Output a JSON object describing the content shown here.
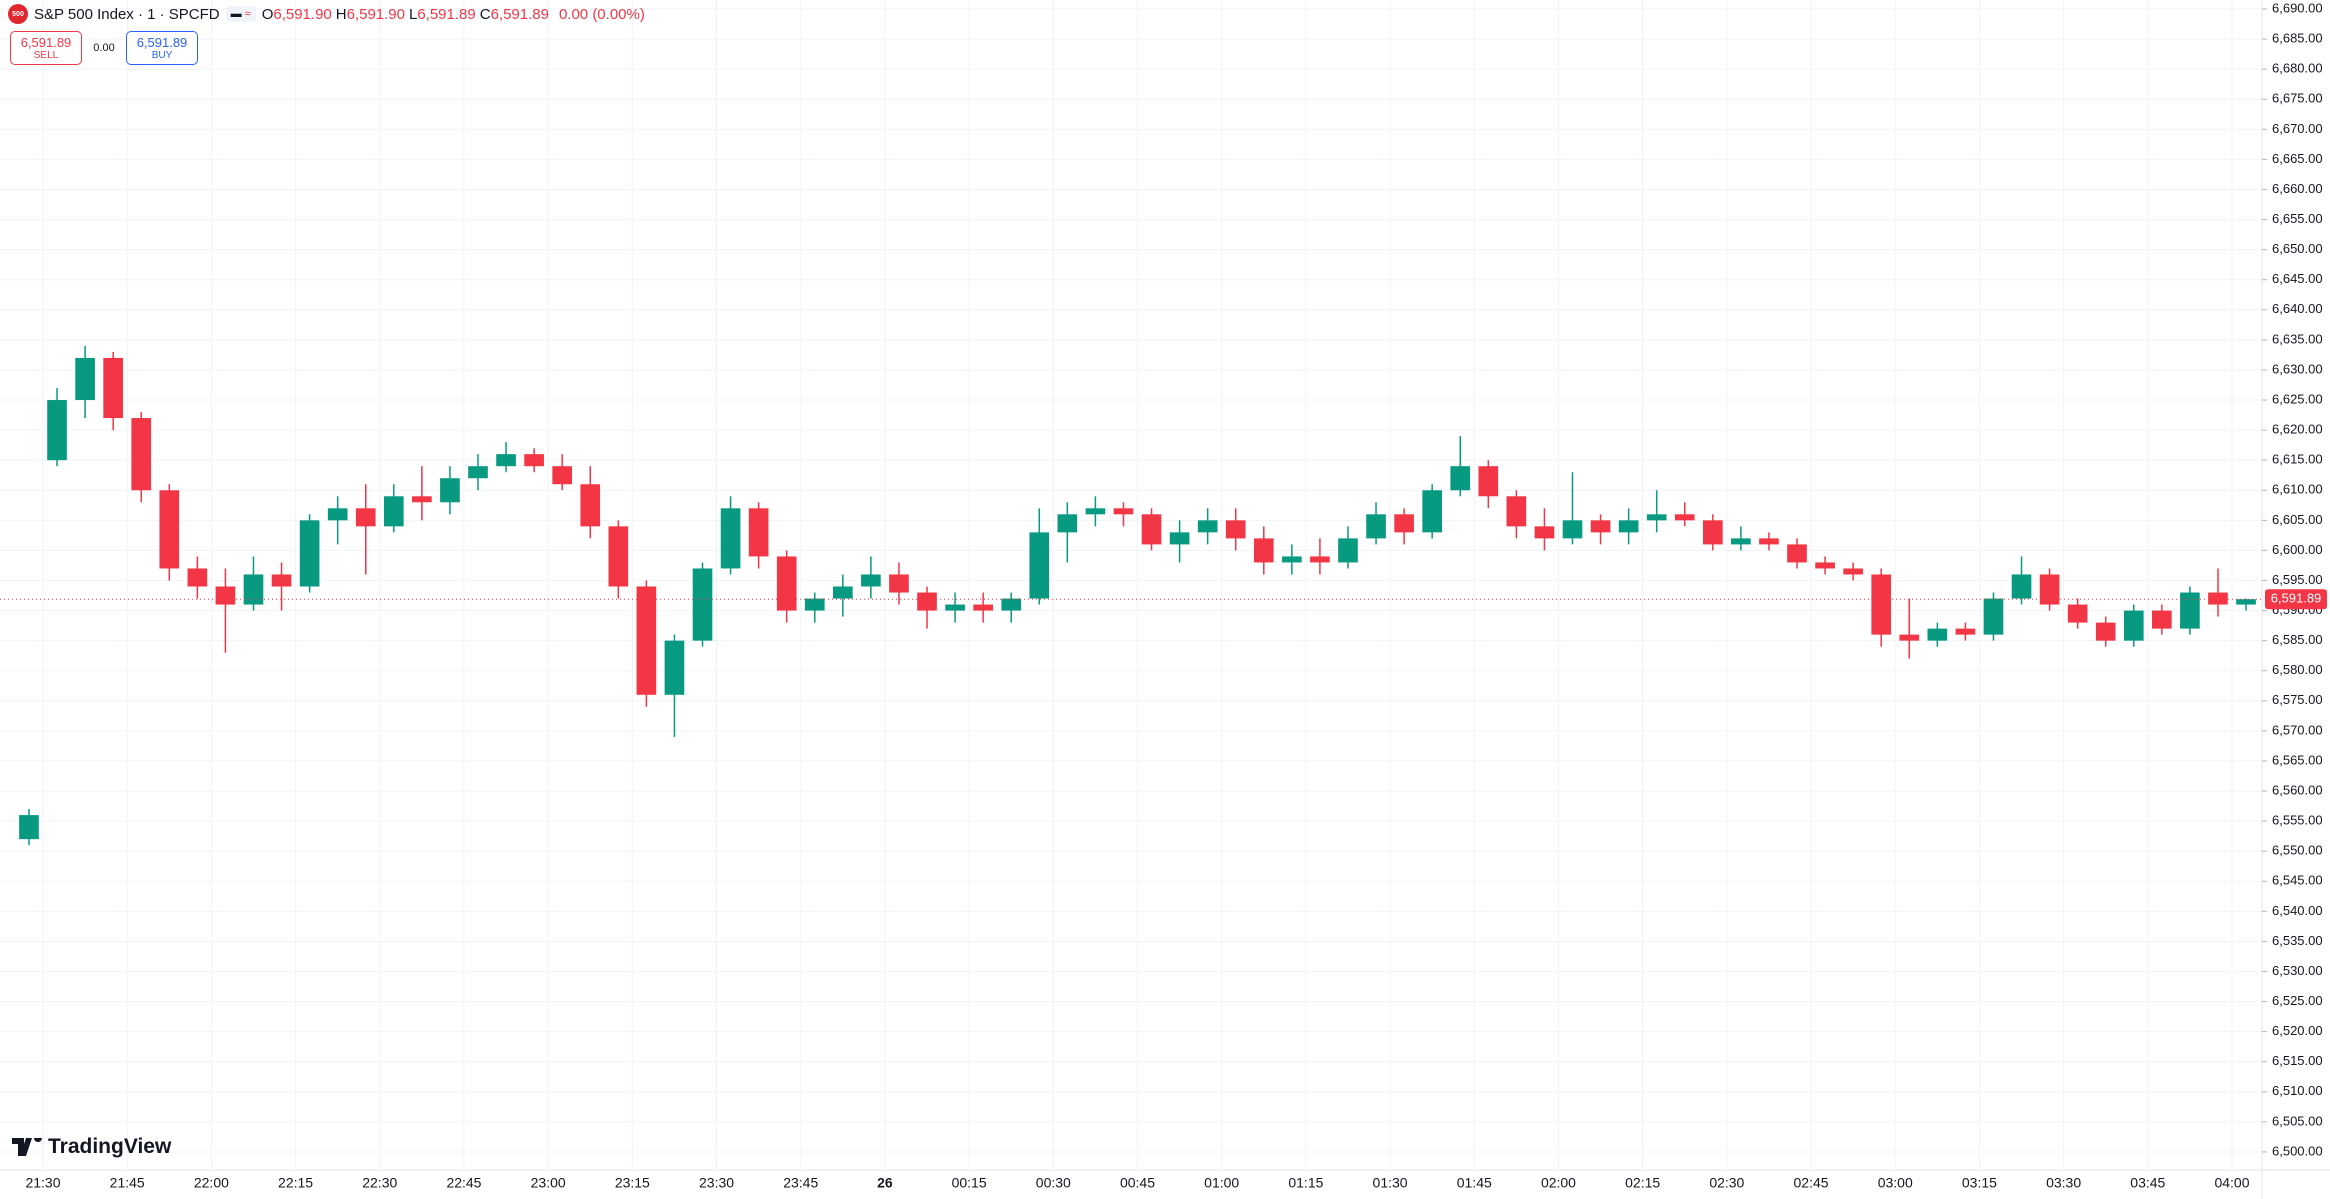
{
  "chart_data": {
    "type": "candlestick",
    "title": "S&P 500 Index · 1 · SPCFD",
    "badge": "500",
    "ohlc": [
      {
        "label": "O",
        "value": "6,591.90"
      },
      {
        "label": "H",
        "value": "6,591.90"
      },
      {
        "label": "L",
        "value": "6,591.89"
      },
      {
        "label": "C",
        "value": "6,591.89"
      }
    ],
    "change": "0.00 (0.00%)",
    "trade": {
      "sell_price": "6,591.89",
      "sell_label": "SELL",
      "spread": "0.00",
      "buy_price": "6,591.89",
      "buy_label": "BUY"
    },
    "brand": "TradingView",
    "up_color": "#089981",
    "down_color": "#f23645",
    "grid": true,
    "last_price": {
      "value": 6591.89,
      "label": "6,591.89"
    },
    "x": [
      "21:25",
      "21:30",
      "21:35",
      "21:40",
      "21:45",
      "21:50",
      "21:55",
      "22:00",
      "22:05",
      "22:10",
      "22:15",
      "22:20",
      "22:25",
      "22:30",
      "22:35",
      "22:40",
      "22:45",
      "22:50",
      "22:55",
      "23:00",
      "23:05",
      "23:10",
      "23:15",
      "23:20",
      "23:25",
      "23:30",
      "23:35",
      "23:40",
      "23:45",
      "23:50",
      "23:55",
      "00:00",
      "00:05",
      "00:10",
      "00:15",
      "00:20",
      "00:25",
      "00:30",
      "00:35",
      "00:40",
      "00:45",
      "00:50",
      "00:55",
      "01:00",
      "01:05",
      "01:10",
      "01:15",
      "01:20",
      "01:25",
      "01:30",
      "01:35",
      "01:40",
      "01:45",
      "01:50",
      "01:55",
      "02:00",
      "02:05",
      "02:10",
      "02:15",
      "02:20",
      "02:25",
      "02:30",
      "02:35",
      "02:40",
      "02:45",
      "02:50",
      "02:55",
      "03:00",
      "03:05",
      "03:10",
      "03:15",
      "03:20",
      "03:25",
      "03:30",
      "03:35",
      "03:40",
      "03:45",
      "03:50",
      "03:55",
      "04:00"
    ],
    "open": [
      6552,
      6615,
      6625,
      6632,
      6622,
      6610,
      6597,
      6594,
      6591,
      6596,
      6594,
      6605,
      6607,
      6604,
      6609,
      6608,
      6612,
      6614,
      6616,
      6614,
      6611,
      6604,
      6594,
      6576,
      6585,
      6597,
      6607,
      6599,
      6590,
      6592,
      6594,
      6596,
      6593,
      6590,
      6591,
      6590,
      6592,
      6603,
      6606,
      6607,
      6606,
      6601,
      6603,
      6605,
      6602,
      6598,
      6599,
      6598,
      6602,
      6606,
      6603,
      6610,
      6614,
      6609,
      6604,
      6602,
      6605,
      6603,
      6605,
      6606,
      6605,
      6601,
      6602,
      6601,
      6598,
      6597,
      6596,
      6586,
      6585,
      6587,
      6586,
      6592,
      6596,
      6591,
      6588,
      6585,
      6590,
      6587,
      6593,
      6591
    ],
    "high": [
      6557,
      6627,
      6634,
      6633,
      6623,
      6611,
      6599,
      6597,
      6599,
      6598,
      6606,
      6609,
      6611,
      6611,
      6614,
      6614,
      6616,
      6618,
      6617,
      6616,
      6614,
      6605,
      6595,
      6586,
      6598,
      6609,
      6608,
      6600,
      6593,
      6596,
      6599,
      6598,
      6594,
      6593,
      6593,
      6593,
      6607,
      6608,
      6609,
      6608,
      6607,
      6605,
      6607,
      6607,
      6604,
      6601,
      6602,
      6604,
      6608,
      6607,
      6611,
      6619,
      6615,
      6610,
      6607,
      6613,
      6606,
      6607,
      6610,
      6608,
      6606,
      6604,
      6603,
      6602,
      6599,
      6598,
      6597,
      6592,
      6588,
      6588,
      6593,
      6599,
      6597,
      6592,
      6589,
      6591,
      6591,
      6594,
      6597,
      6592
    ],
    "low": [
      6551,
      6614,
      6622,
      6620,
      6608,
      6595,
      6592,
      6583,
      6590,
      6590,
      6593,
      6601,
      6596,
      6603,
      6605,
      6606,
      6610,
      6613,
      6613,
      6610,
      6602,
      6592,
      6574,
      6569,
      6584,
      6596,
      6597,
      6588,
      6588,
      6589,
      6592,
      6591,
      6587,
      6588,
      6588,
      6588,
      6591,
      6598,
      6604,
      6604,
      6600,
      6598,
      6601,
      6600,
      6596,
      6596,
      6596,
      6597,
      6601,
      6601,
      6602,
      6609,
      6607,
      6602,
      6600,
      6601,
      6601,
      6601,
      6603,
      6604,
      6600,
      6600,
      6600,
      6597,
      6596,
      6595,
      6584,
      6582,
      6584,
      6585,
      6585,
      6591,
      6590,
      6587,
      6584,
      6584,
      6586,
      6586,
      6589,
      6590
    ],
    "close": [
      6556,
      6625,
      6632,
      6622,
      6610,
      6597,
      6594,
      6591,
      6596,
      6594,
      6605,
      6607,
      6604,
      6609,
      6608,
      6612,
      6614,
      6616,
      6614,
      6611,
      6604,
      6594,
      6576,
      6585,
      6597,
      6607,
      6599,
      6590,
      6592,
      6594,
      6596,
      6593,
      6590,
      6591,
      6590,
      6592,
      6603,
      6606,
      6607,
      6606,
      6601,
      6603,
      6605,
      6602,
      6598,
      6599,
      6598,
      6602,
      6606,
      6603,
      6610,
      6614,
      6609,
      6604,
      6602,
      6605,
      6603,
      6605,
      6606,
      6605,
      6601,
      6602,
      6601,
      6598,
      6597,
      6596,
      6586,
      6585,
      6587,
      6586,
      6592,
      6596,
      6591,
      6588,
      6585,
      6590,
      6587,
      6593,
      6591,
      6591.89
    ],
    "ylim": [
      6497,
      6691.5
    ],
    "yticks": [
      {
        "value": 6500,
        "label": "6,500.00"
      },
      {
        "value": 6505,
        "label": "6,505.00"
      },
      {
        "value": 6510,
        "label": "6,510.00"
      },
      {
        "value": 6515,
        "label": "6,515.00"
      },
      {
        "value": 6520,
        "label": "6,520.00"
      },
      {
        "value": 6525,
        "label": "6,525.00"
      },
      {
        "value": 6530,
        "label": "6,530.00"
      },
      {
        "value": 6535,
        "label": "6,535.00"
      },
      {
        "value": 6540,
        "label": "6,540.00"
      },
      {
        "value": 6545,
        "label": "6,545.00"
      },
      {
        "value": 6550,
        "label": "6,550.00"
      },
      {
        "value": 6555,
        "label": "6,555.00"
      },
      {
        "value": 6560,
        "label": "6,560.00"
      },
      {
        "value": 6565,
        "label": "6,565.00"
      },
      {
        "value": 6570,
        "label": "6,570.00"
      },
      {
        "value": 6575,
        "label": "6,575.00"
      },
      {
        "value": 6580,
        "label": "6,580.00"
      },
      {
        "value": 6585,
        "label": "6,585.00"
      },
      {
        "value": 6590,
        "label": "6,590.00"
      },
      {
        "value": 6595,
        "label": "6,595.00"
      },
      {
        "value": 6600,
        "label": "6,600.00"
      },
      {
        "value": 6605,
        "label": "6,605.00"
      },
      {
        "value": 6610,
        "label": "6,610.00"
      },
      {
        "value": 6615,
        "label": "6,615.00"
      },
      {
        "value": 6620,
        "label": "6,620.00"
      },
      {
        "value": 6625,
        "label": "6,625.00"
      },
      {
        "value": 6630,
        "label": "6,630.00"
      },
      {
        "value": 6635,
        "label": "6,635.00"
      },
      {
        "value": 6640,
        "label": "6,640.00"
      },
      {
        "value": 6645,
        "label": "6,645.00"
      },
      {
        "value": 6650,
        "label": "6,650.00"
      },
      {
        "value": 6655,
        "label": "6,655.00"
      },
      {
        "value": 6660,
        "label": "6,660.00"
      },
      {
        "value": 6665,
        "label": "6,665.00"
      },
      {
        "value": 6670,
        "label": "6,670.00"
      },
      {
        "value": 6675,
        "label": "6,675.00"
      },
      {
        "value": 6680,
        "label": "6,680.00"
      },
      {
        "value": 6685,
        "label": "6,685.00"
      },
      {
        "value": 6690,
        "label": "6,690.00"
      }
    ],
    "xticks": [
      "21:30",
      "21:45",
      "22:00",
      "22:15",
      "22:30",
      "22:45",
      "23:00",
      "23:15",
      "23:30",
      "23:45",
      "26",
      "00:15",
      "00:30",
      "00:45",
      "01:00",
      "01:15",
      "01:30",
      "01:45",
      "02:00",
      "02:15",
      "02:30",
      "02:45",
      "03:00",
      "03:15",
      "03:30",
      "03:45",
      "04:00"
    ]
  }
}
